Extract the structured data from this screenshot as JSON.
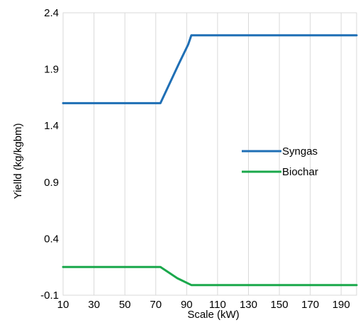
{
  "chart_data": {
    "type": "line",
    "title": "",
    "xlabel": "Scale (kW)",
    "ylabel": "Yielld (kg/kgbm)",
    "xlim": [
      10,
      200
    ],
    "ylim": [
      -0.1,
      2.4
    ],
    "xticks": [
      10,
      30,
      50,
      70,
      90,
      110,
      130,
      150,
      170,
      190
    ],
    "yticks": [
      -0.1,
      0.4,
      0.9,
      1.4,
      1.9,
      2.4
    ],
    "xtick_labels": [
      "10",
      "30",
      "50",
      "70",
      "90",
      "110",
      "130",
      "150",
      "170",
      "190"
    ],
    "ytick_labels": [
      "-0.1",
      "0.4",
      "0.9",
      "1.4",
      "1.9",
      "2.4"
    ],
    "grid": "vertical",
    "legend_position": "right-center",
    "series": [
      {
        "name": "Syngas",
        "color": "#1f6fb5",
        "x": [
          10,
          73,
          85,
          91,
          93,
          200
        ],
        "y": [
          1.6,
          1.6,
          1.95,
          2.12,
          2.2,
          2.2
        ]
      },
      {
        "name": "Biochar",
        "color": "#1aa84b",
        "x": [
          10,
          73,
          84,
          93,
          200
        ],
        "y": [
          0.15,
          0.15,
          0.05,
          -0.01,
          -0.01
        ]
      }
    ]
  }
}
